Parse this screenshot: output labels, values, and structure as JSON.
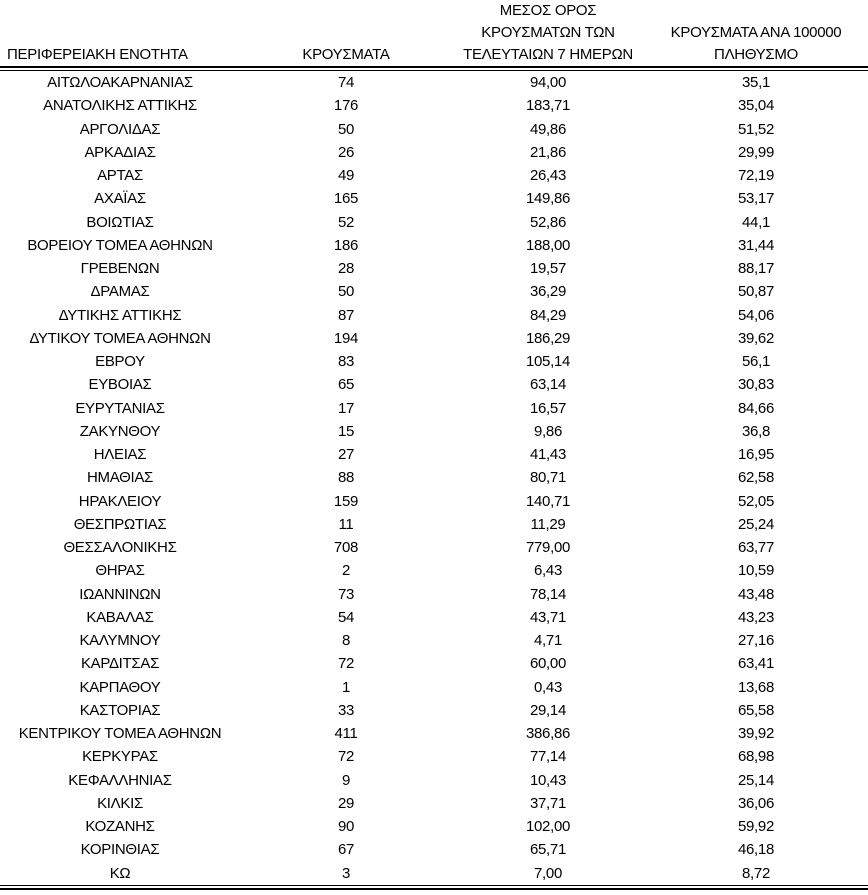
{
  "header": {
    "col1_label": "ΠΕΡΙΦΕΡΕΙΑΚΗ ΕΝΟΤΗΤΑ",
    "col2_label": "ΚΡΟΥΣΜΑΤΑ",
    "col3_lines": [
      "ΜΕΣΟΣ ΟΡΟΣ",
      "ΚΡΟΥΣΜΑΤΩΝ ΤΩΝ",
      "ΤΕΛΕΥΤΑΙΩΝ 7 ΗΜΕΡΩΝ"
    ],
    "col4_lines": [
      "ΚΡΟΥΣΜΑΤΑ ΑΝΑ 100000",
      "ΠΛΗΘΥΣΜΟ"
    ]
  },
  "colors": {
    "text": "#000000",
    "background": "#ffffff",
    "rule": "#000000"
  },
  "chart_data": {
    "type": "table",
    "title": "",
    "columns": [
      "ΠΕΡΙΦΕΡΕΙΑΚΗ ΕΝΟΤΗΤΑ",
      "ΚΡΟΥΣΜΑΤΑ",
      "ΜΕΣΟΣ ΟΡΟΣ ΚΡΟΥΣΜΑΤΩΝ ΤΩΝ ΤΕΛΕΥΤΑΙΩΝ 7 ΗΜΕΡΩΝ",
      "ΚΡΟΥΣΜΑΤΑ ΑΝΑ 100000 ΠΛΗΘΥΣΜΟ"
    ],
    "rows": [
      [
        "ΑΙΤΩΛΟΑΚΑΡΝΑΝΙΑΣ",
        "74",
        "94,00",
        "35,1"
      ],
      [
        "ΑΝΑΤΟΛΙΚΗΣ ΑΤΤΙΚΗΣ",
        "176",
        "183,71",
        "35,04"
      ],
      [
        "ΑΡΓΟΛΙΔΑΣ",
        "50",
        "49,86",
        "51,52"
      ],
      [
        "ΑΡΚΑΔΙΑΣ",
        "26",
        "21,86",
        "29,99"
      ],
      [
        "ΑΡΤΑΣ",
        "49",
        "26,43",
        "72,19"
      ],
      [
        "ΑΧΑΪΑΣ",
        "165",
        "149,86",
        "53,17"
      ],
      [
        "ΒΟΙΩΤΙΑΣ",
        "52",
        "52,86",
        "44,1"
      ],
      [
        "ΒΟΡΕΙΟΥ ΤΟΜΕΑ ΑΘΗΝΩΝ",
        "186",
        "188,00",
        "31,44"
      ],
      [
        "ΓΡΕΒΕΝΩΝ",
        "28",
        "19,57",
        "88,17"
      ],
      [
        "ΔΡΑΜΑΣ",
        "50",
        "36,29",
        "50,87"
      ],
      [
        "ΔΥΤΙΚΗΣ ΑΤΤΙΚΗΣ",
        "87",
        "84,29",
        "54,06"
      ],
      [
        "ΔΥΤΙΚΟΥ ΤΟΜΕΑ ΑΘΗΝΩΝ",
        "194",
        "186,29",
        "39,62"
      ],
      [
        "ΕΒΡΟΥ",
        "83",
        "105,14",
        "56,1"
      ],
      [
        "ΕΥΒΟΙΑΣ",
        "65",
        "63,14",
        "30,83"
      ],
      [
        "ΕΥΡΥΤΑΝΙΑΣ",
        "17",
        "16,57",
        "84,66"
      ],
      [
        "ΖΑΚΥΝΘΟΥ",
        "15",
        "9,86",
        "36,8"
      ],
      [
        "ΗΛΕΙΑΣ",
        "27",
        "41,43",
        "16,95"
      ],
      [
        "ΗΜΑΘΙΑΣ",
        "88",
        "80,71",
        "62,58"
      ],
      [
        "ΗΡΑΚΛΕΙΟΥ",
        "159",
        "140,71",
        "52,05"
      ],
      [
        "ΘΕΣΠΡΩΤΙΑΣ",
        "11",
        "11,29",
        "25,24"
      ],
      [
        "ΘΕΣΣΑΛΟΝΙΚΗΣ",
        "708",
        "779,00",
        "63,77"
      ],
      [
        "ΘΗΡΑΣ",
        "2",
        "6,43",
        "10,59"
      ],
      [
        "ΙΩΑΝΝΙΝΩΝ",
        "73",
        "78,14",
        "43,48"
      ],
      [
        "ΚΑΒΑΛΑΣ",
        "54",
        "43,71",
        "43,23"
      ],
      [
        "ΚΑΛΥΜΝΟΥ",
        "8",
        "4,71",
        "27,16"
      ],
      [
        "ΚΑΡΔΙΤΣΑΣ",
        "72",
        "60,00",
        "63,41"
      ],
      [
        "ΚΑΡΠΑΘΟΥ",
        "1",
        "0,43",
        "13,68"
      ],
      [
        "ΚΑΣΤΟΡΙΑΣ",
        "33",
        "29,14",
        "65,58"
      ],
      [
        "ΚΕΝΤΡΙΚΟΥ ΤΟΜΕΑ ΑΘΗΝΩΝ",
        "411",
        "386,86",
        "39,92"
      ],
      [
        "ΚΕΡΚΥΡΑΣ",
        "72",
        "77,14",
        "68,98"
      ],
      [
        "ΚΕΦΑΛΛΗΝΙΑΣ",
        "9",
        "10,43",
        "25,14"
      ],
      [
        "ΚΙΛΚΙΣ",
        "29",
        "37,71",
        "36,06"
      ],
      [
        "ΚΟΖΑΝΗΣ",
        "90",
        "102,00",
        "59,92"
      ],
      [
        "ΚΟΡΙΝΘΙΑΣ",
        "67",
        "65,71",
        "46,18"
      ],
      [
        "ΚΩ",
        "3",
        "7,00",
        "8,72"
      ]
    ]
  }
}
